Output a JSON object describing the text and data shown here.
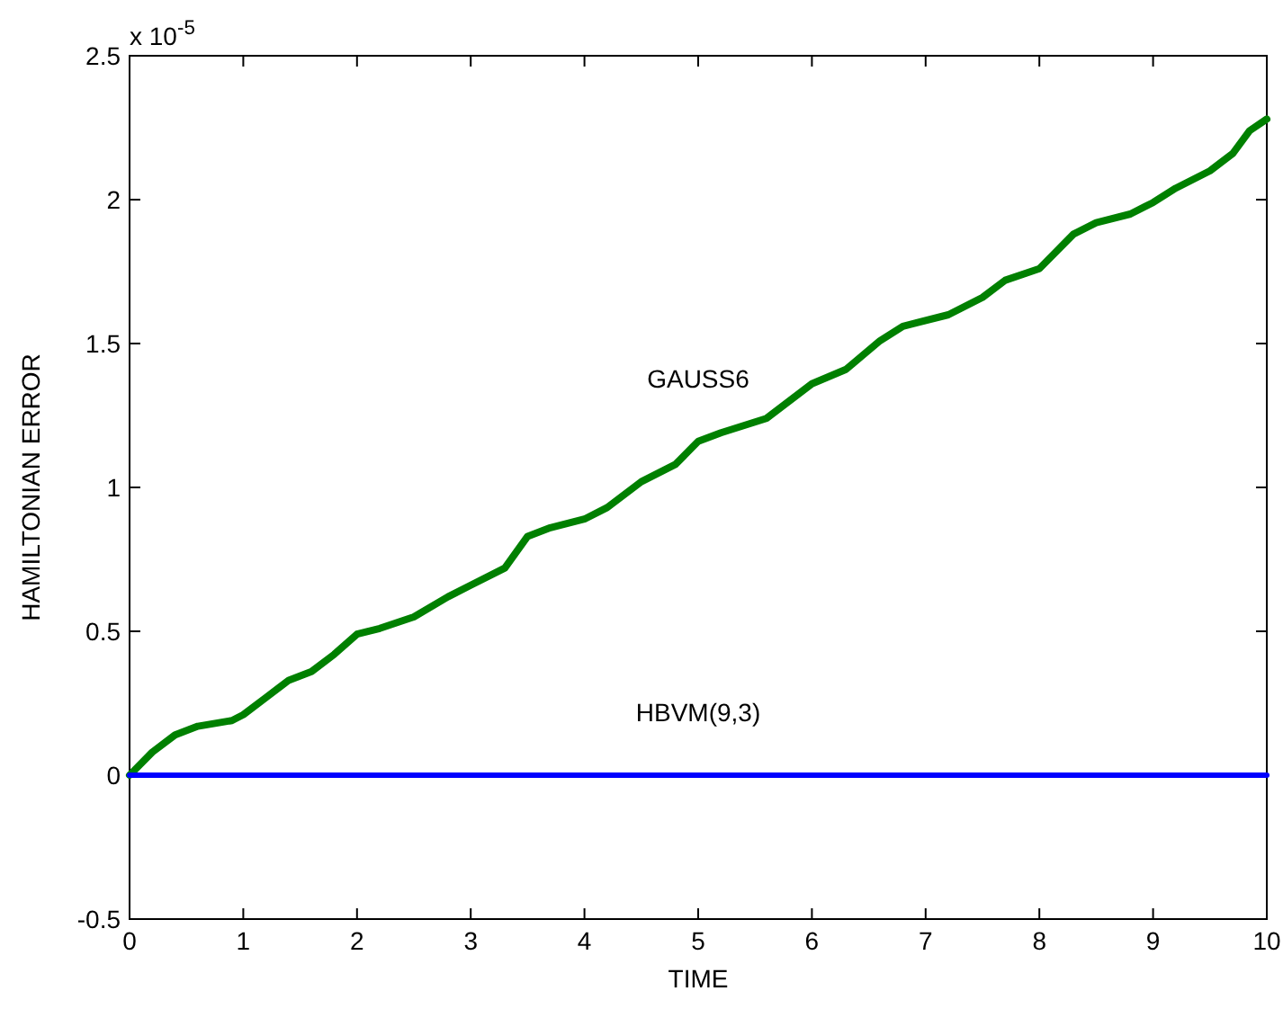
{
  "chart_data": {
    "type": "line",
    "xlabel": "TIME",
    "ylabel": "HAMILTONIAN ERROR",
    "annotations": [
      "x 10$^{-5}$"
    ],
    "xlim": [
      0,
      10
    ],
    "ylim": [
      -0.5,
      2.5
    ],
    "xticks": [
      0,
      1,
      2,
      3,
      4,
      5,
      6,
      7,
      8,
      9,
      10
    ],
    "yticks": [
      -0.5,
      0,
      0.5,
      1,
      1.5,
      2,
      2.5
    ],
    "grid": false,
    "marker": "none",
    "line_style": "solid",
    "series": [
      {
        "name": "GAUSS6",
        "color": "#008000",
        "x": [
          0,
          0.2,
          0.4,
          0.6,
          0.9,
          1.0,
          1.2,
          1.4,
          1.6,
          1.8,
          2.0,
          2.2,
          2.5,
          2.8,
          3.0,
          3.3,
          3.5,
          3.7,
          4.0,
          4.2,
          4.5,
          4.8,
          5.0,
          5.2,
          5.6,
          6.0,
          6.3,
          6.6,
          6.8,
          7.2,
          7.5,
          7.7,
          8.0,
          8.3,
          8.5,
          8.8,
          9.0,
          9.2,
          9.5,
          9.7,
          9.85,
          10
        ],
        "values": [
          0,
          0.08,
          0.14,
          0.17,
          0.19,
          0.21,
          0.27,
          0.33,
          0.36,
          0.42,
          0.49,
          0.51,
          0.55,
          0.62,
          0.66,
          0.72,
          0.83,
          0.86,
          0.89,
          0.93,
          1.02,
          1.08,
          1.16,
          1.19,
          1.24,
          1.36,
          1.41,
          1.51,
          1.56,
          1.6,
          1.66,
          1.72,
          1.76,
          1.88,
          1.92,
          1.95,
          1.99,
          2.04,
          2.1,
          2.16,
          2.24,
          2.28
        ]
      },
      {
        "name": "HBVM(9,3)",
        "color": "#0000ff",
        "x": [
          0,
          2.5,
          5,
          7.5,
          10
        ],
        "values": [
          0,
          0,
          0,
          0,
          0
        ]
      }
    ]
  }
}
